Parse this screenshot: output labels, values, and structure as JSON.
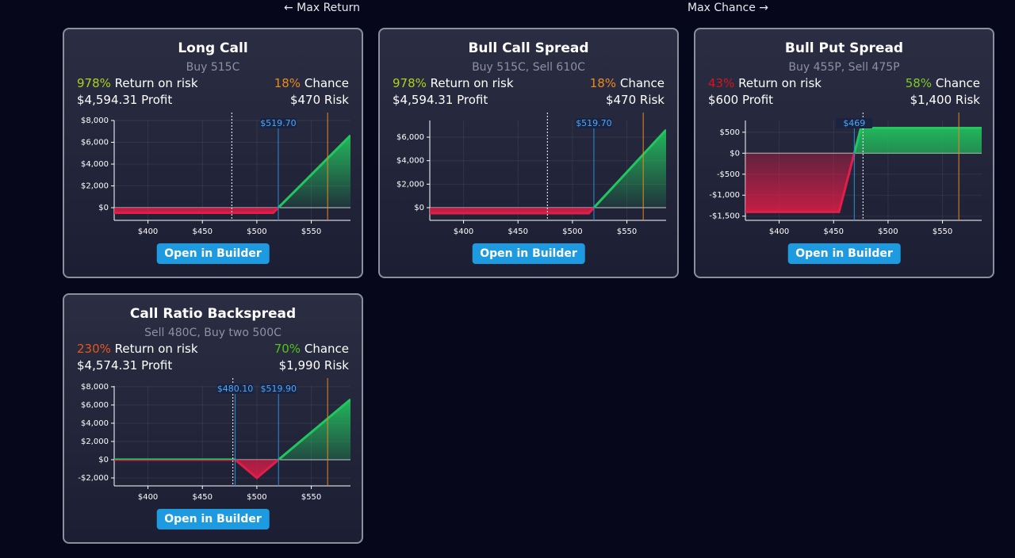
{
  "header": {
    "left": "← Max Return",
    "right": "Max Chance →"
  },
  "cards": [
    {
      "title": "Long Call",
      "subtitle": "Buy 515C",
      "return_value": "978%",
      "return_label": "Return on risk",
      "return_color": "#a8d41c",
      "chance_value": "18%",
      "chance_label": "Chance",
      "chance_color": "#ec8a1c",
      "profit": "$4,594.31 Profit",
      "risk": "$470 Risk",
      "button": "Open in Builder",
      "chart": {
        "xlim": [
          369,
          586
        ],
        "ylim": [
          -1160,
          8000
        ],
        "xticks": [
          {
            "value": 400,
            "label": "$400"
          },
          {
            "value": 450,
            "label": "$450"
          },
          {
            "value": 500,
            "label": "$500"
          },
          {
            "value": 550,
            "label": "$550"
          }
        ],
        "yticks": [
          {
            "value": 0,
            "label": "$0"
          },
          {
            "value": 2000,
            "label": "$2,000"
          },
          {
            "value": 4000,
            "label": "$4,000"
          },
          {
            "value": 6000,
            "label": "$6,000"
          },
          {
            "value": 8000,
            "label": "$8,000"
          }
        ],
        "payoff": {
          "x": [
            369,
            515,
            586
          ],
          "y": [
            -470,
            -470,
            6630
          ]
        },
        "current_price": 477,
        "target": 565,
        "breakevens": [
          {
            "value": 519.7,
            "label": "$519.70"
          }
        ]
      }
    },
    {
      "title": "Bull Call Spread",
      "subtitle": "Buy 515C, Sell 610C",
      "return_value": "978%",
      "return_label": "Return on risk",
      "return_color": "#a8d41c",
      "chance_value": "18%",
      "chance_label": "Chance",
      "chance_color": "#ec8a1c",
      "profit": "$4,594.31 Profit",
      "risk": "$470 Risk",
      "button": "Open in Builder",
      "chart": {
        "xlim": [
          369,
          586
        ],
        "ylim": [
          -1080,
          7420
        ],
        "xticks": [
          {
            "value": 400,
            "label": "$400"
          },
          {
            "value": 450,
            "label": "$450"
          },
          {
            "value": 500,
            "label": "$500"
          },
          {
            "value": 550,
            "label": "$550"
          }
        ],
        "yticks": [
          {
            "value": 0,
            "label": "$0"
          },
          {
            "value": 2000,
            "label": "$2,000"
          },
          {
            "value": 4000,
            "label": "$4,000"
          },
          {
            "value": 6000,
            "label": "$6,000"
          }
        ],
        "payoff": {
          "x": [
            369,
            515,
            586
          ],
          "y": [
            -470,
            -470,
            6630
          ]
        },
        "current_price": 477,
        "target": 565,
        "breakevens": [
          {
            "value": 519.7,
            "label": "$519.70"
          }
        ]
      }
    },
    {
      "title": "Bull Put Spread",
      "subtitle": "Buy 455P, Sell 475P",
      "return_value": "43%",
      "return_label": "Return on risk",
      "return_color": "#d8141c",
      "chance_value": "58%",
      "chance_label": "Chance",
      "chance_color": "#7ecb22",
      "profit": "$600 Profit",
      "risk": "$1,400 Risk",
      "button": "Open in Builder",
      "chart": {
        "xlim": [
          369,
          586
        ],
        "ylim": [
          -1600,
          780
        ],
        "xticks": [
          {
            "value": 400,
            "label": "$400"
          },
          {
            "value": 450,
            "label": "$450"
          },
          {
            "value": 500,
            "label": "$500"
          },
          {
            "value": 550,
            "label": "$550"
          }
        ],
        "yticks": [
          {
            "value": -1500,
            "label": "-$1,500"
          },
          {
            "value": -1000,
            "label": "-$1,000"
          },
          {
            "value": -500,
            "label": "-$500"
          },
          {
            "value": 0,
            "label": "$0"
          },
          {
            "value": 500,
            "label": "$500"
          }
        ],
        "payoff": {
          "x": [
            369,
            455,
            475,
            586
          ],
          "y": [
            -1400,
            -1400,
            600,
            600
          ]
        },
        "current_price": 477,
        "target": 565,
        "breakevens": [
          {
            "value": 469,
            "label": "$469"
          }
        ]
      }
    },
    {
      "title": "Call Ratio Backspread",
      "subtitle": "Sell 480C, Buy two 500C",
      "return_value": "230%",
      "return_label": "Return on risk",
      "return_color": "#e5561c",
      "chance_value": "70%",
      "chance_label": "Chance",
      "chance_color": "#52c41a",
      "profit": "$4,574.31 Profit",
      "risk": "$1,990 Risk",
      "button": "Open in Builder",
      "chart": {
        "xlim": [
          369,
          586
        ],
        "ylim": [
          -2870,
          8080
        ],
        "xticks": [
          {
            "value": 400,
            "label": "$400"
          },
          {
            "value": 450,
            "label": "$450"
          },
          {
            "value": 500,
            "label": "$500"
          },
          {
            "value": 550,
            "label": "$550"
          }
        ],
        "yticks": [
          {
            "value": -2000,
            "label": "-$2,000"
          },
          {
            "value": 0,
            "label": "$0"
          },
          {
            "value": 2000,
            "label": "$2,000"
          },
          {
            "value": 4000,
            "label": "$4,000"
          },
          {
            "value": 6000,
            "label": "$6,000"
          },
          {
            "value": 8000,
            "label": "$8,000"
          }
        ],
        "payoff": {
          "x": [
            369,
            480,
            500,
            586
          ],
          "y": [
            10,
            10,
            -1990,
            6610
          ]
        },
        "current_price": 478,
        "target": 565,
        "breakevens": [
          {
            "value": 480.1,
            "label": "$480.10"
          },
          {
            "value": 519.9,
            "label": "$519.90"
          }
        ]
      }
    }
  ]
}
